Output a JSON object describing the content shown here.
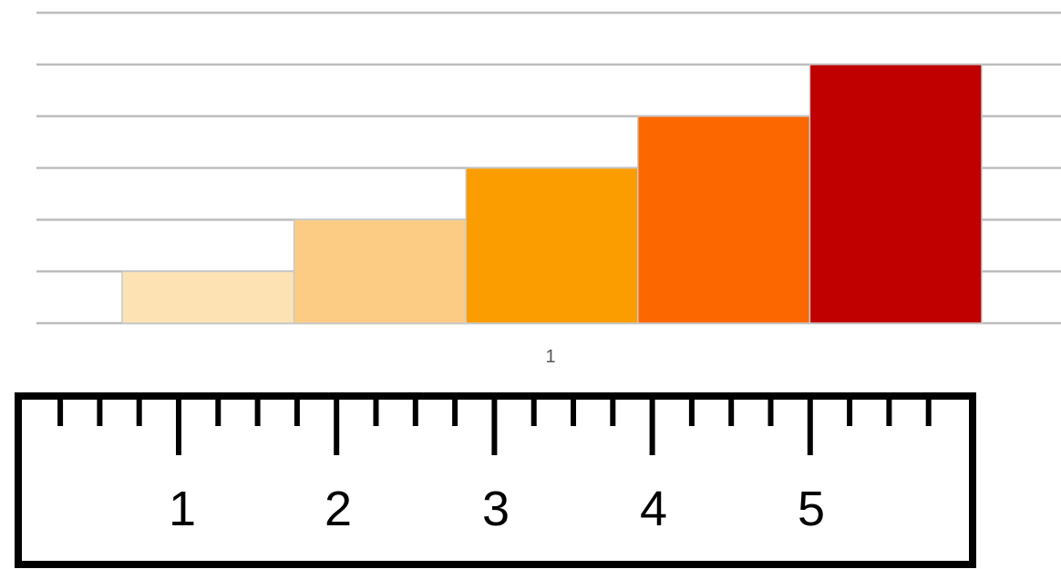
{
  "chart_data": {
    "type": "bar",
    "categories": [
      "1"
    ],
    "series": [
      {
        "values": [
          1
        ],
        "color": "#FDE3B4"
      },
      {
        "values": [
          2
        ],
        "color": "#FDCC84"
      },
      {
        "values": [
          3
        ],
        "color": "#FB9D00"
      },
      {
        "values": [
          4
        ],
        "color": "#FC6700"
      },
      {
        "values": [
          5
        ],
        "color": "#C00000"
      }
    ],
    "ylim": [
      0,
      6
    ],
    "grid": true,
    "legend": "none",
    "colors": {
      "gridline": "#BDBDBD",
      "bar_border": "#C9C9C9",
      "tick_label": "#555555"
    }
  },
  "ruler": {
    "labels": [
      "1",
      "2",
      "3",
      "4",
      "5"
    ],
    "minor_ticks_per_unit": 4,
    "colors": {
      "frame": "#000000",
      "background": "#FFFFFF"
    }
  }
}
